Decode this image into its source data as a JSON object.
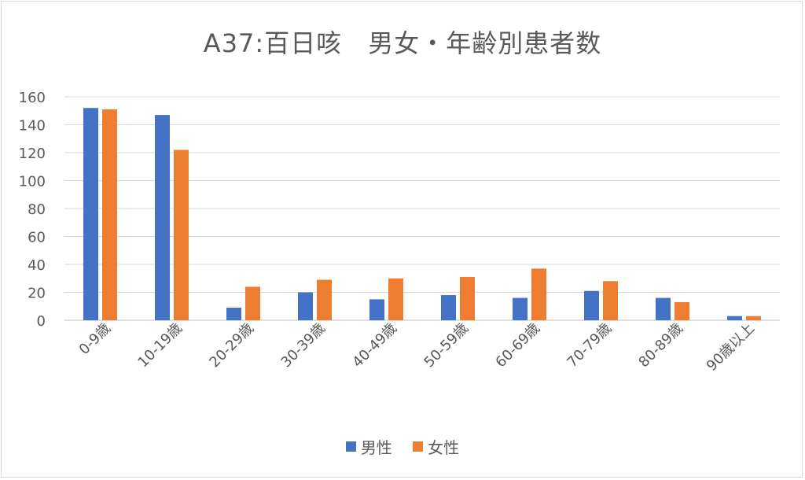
{
  "chart_data": {
    "type": "bar",
    "title": "A37:百日咳　男女・年齢別患者数",
    "categories": [
      "0-9歳",
      "10-19歳",
      "20-29歳",
      "30-39歳",
      "40-49歳",
      "50-59歳",
      "60-69歳",
      "70-79歳",
      "80-89歳",
      "90歳以上"
    ],
    "series": [
      {
        "name": "男性",
        "color": "#4472C4",
        "values": [
          152,
          147,
          9,
          20,
          15,
          18,
          16,
          21,
          16,
          3
        ]
      },
      {
        "name": "女性",
        "color": "#ED7D31",
        "values": [
          151,
          122,
          24,
          29,
          30,
          31,
          37,
          28,
          13,
          3
        ]
      }
    ],
    "ylim": [
      0,
      160
    ],
    "yticks": [
      0,
      20,
      40,
      60,
      80,
      100,
      120,
      140,
      160
    ],
    "grid": true,
    "legend": "bottom"
  }
}
